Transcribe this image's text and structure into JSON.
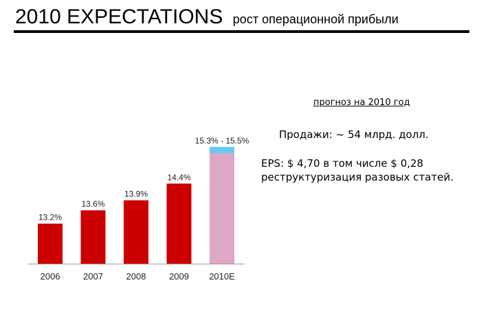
{
  "header": {
    "title": "2010 EXPECTATIONS",
    "subtitle": "рост операционной прибыли"
  },
  "side_panel": {
    "forecast_title": "прогноз на 2010 год",
    "sales": "Продажи: ~ 54 млрд. долл.",
    "eps_line1": "EPS: $ 4,70 в том числе $ 0,28",
    "eps_line2": "реструктуризация разовых статей."
  },
  "colors": {
    "actual_bar": "#cc0000",
    "forecast_bar": "#dfa6c5",
    "forecast_range": "#6ec6f2",
    "axis": "#999999"
  },
  "chart_data": {
    "type": "bar",
    "categories": [
      "2006",
      "2007",
      "2008",
      "2009",
      "2010E"
    ],
    "values": [
      13.2,
      13.6,
      13.9,
      14.4,
      15.3
    ],
    "value_labels": [
      "13.2%",
      "13.6%",
      "13.9%",
      "14.4%",
      "15.3% - 15.5%"
    ],
    "forecast_range": {
      "category": "2010E",
      "low": 15.3,
      "high": 15.5
    },
    "ylim": [
      12.0,
      15.6
    ],
    "grid": false,
    "title": "",
    "xlabel": "",
    "ylabel": ""
  }
}
